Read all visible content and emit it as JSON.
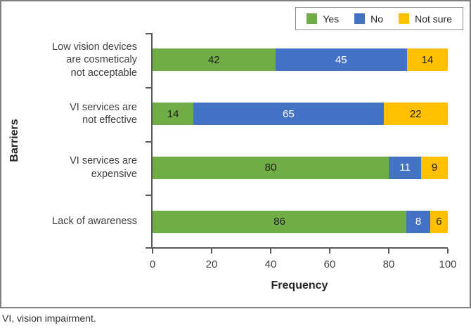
{
  "figure": {
    "footnote": "VI, vision impairment."
  },
  "chart_data": {
    "type": "bar",
    "orientation": "horizontal",
    "stacked": true,
    "title": "",
    "xlabel": "Frequency",
    "ylabel": "Barriers",
    "xlim": [
      0,
      100
    ],
    "xticks": [
      "0",
      "20",
      "40",
      "60",
      "80",
      "100"
    ],
    "grid": false,
    "legend_position": "top-right",
    "categories": [
      "Low vision devices are cosmeticaly not acceptable",
      "VI services are not effective",
      "VI services are expensive",
      "Lack of awareness"
    ],
    "category_lines": [
      [
        "Low vision devices",
        "are cosmeticaly",
        "not acceptable"
      ],
      [
        "VI services are",
        "not effective"
      ],
      [
        "VI services are",
        "expensive"
      ],
      [
        "Lack of awareness"
      ]
    ],
    "series": [
      {
        "name": "Yes",
        "color": "#70AD47",
        "label_color": "#1f1f1f",
        "values": [
          42,
          14,
          80,
          86
        ]
      },
      {
        "name": "No",
        "color": "#4472C4",
        "label_color": "#ffffff",
        "values": [
          45,
          65,
          11,
          8
        ]
      },
      {
        "name": "Not sure",
        "color": "#FFC000",
        "label_color": "#1f1f1f",
        "values": [
          14,
          22,
          9,
          6
        ]
      }
    ],
    "axis_color": "#595959",
    "text_color": "#404040"
  }
}
